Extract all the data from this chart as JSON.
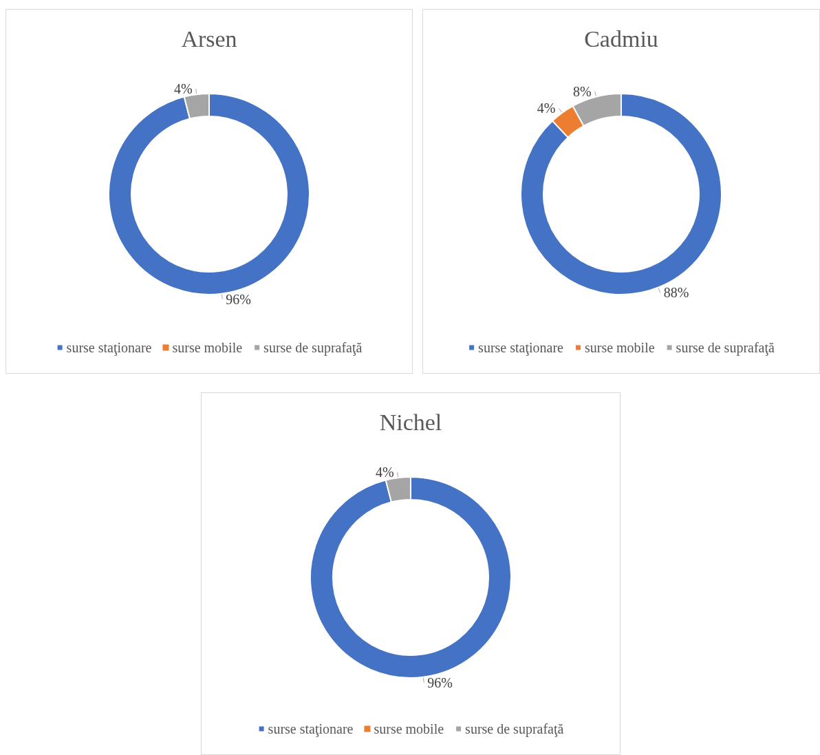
{
  "chart_data": [
    {
      "type": "donut",
      "title": "Arsen",
      "categories": [
        "surse staţionare",
        "surse mobile",
        "surse de suprafaţă"
      ],
      "values": [
        96,
        0,
        4
      ],
      "colors": [
        "#4472c4",
        "#ed7d31",
        "#a5a5a5"
      ],
      "value_labels": [
        "96%",
        null,
        "4%"
      ],
      "legend": "bottom"
    },
    {
      "type": "donut",
      "title": "Cadmiu",
      "categories": [
        "surse staţionare",
        "surse mobile",
        "surse de suprafaţă"
      ],
      "values": [
        88,
        4,
        8
      ],
      "colors": [
        "#4472c4",
        "#ed7d31",
        "#a5a5a5"
      ],
      "value_labels": [
        "88%",
        "4%",
        "8%"
      ],
      "legend": "bottom"
    },
    {
      "type": "donut",
      "title": "Nichel",
      "categories": [
        "surse staţionare",
        "surse mobile",
        "surse de suprafaţă"
      ],
      "values": [
        96,
        0,
        4
      ],
      "colors": [
        "#4472c4",
        "#ed7d31",
        "#a5a5a5"
      ],
      "value_labels": [
        "96%",
        null,
        "4%"
      ],
      "legend": "bottom"
    }
  ]
}
